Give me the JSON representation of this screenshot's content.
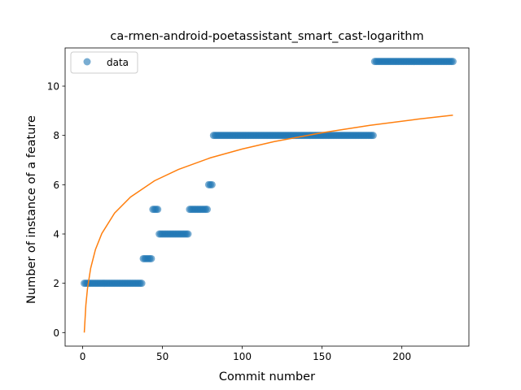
{
  "chart_data": {
    "type": "scatter",
    "title": "ca-rmen-android-poetassistant_smart_cast-logarithm",
    "xlabel": "Commit number",
    "ylabel": "Number of instance of a feature",
    "xlim": [
      -11,
      242
    ],
    "ylim": [
      -0.55,
      11.55
    ],
    "xticks": [
      0,
      50,
      100,
      150,
      200
    ],
    "yticks": [
      0,
      2,
      4,
      6,
      8,
      10
    ],
    "legend": {
      "placement": "top-left",
      "entries": [
        "data"
      ]
    },
    "series": [
      {
        "name": "data",
        "kind": "scatter",
        "color": "#1f77b4",
        "segments": [
          {
            "x_from": 1,
            "x_to": 37,
            "y": 2
          },
          {
            "x_from": 38,
            "x_to": 43,
            "y": 3
          },
          {
            "x_from": 44,
            "x_to": 47,
            "y": 5
          },
          {
            "x_from": 48,
            "x_to": 66,
            "y": 4
          },
          {
            "x_from": 67,
            "x_to": 78,
            "y": 5
          },
          {
            "x_from": 79,
            "x_to": 81,
            "y": 6
          },
          {
            "x_from": 82,
            "x_to": 182,
            "y": 8
          },
          {
            "x_from": 183,
            "x_to": 232,
            "y": 11
          }
        ]
      },
      {
        "kind": "line",
        "color": "#ff7f0e",
        "model": "logarithmic",
        "points": [
          [
            1,
            0.0
          ],
          [
            2,
            1.12
          ],
          [
            3,
            1.78
          ],
          [
            5,
            2.61
          ],
          [
            8,
            3.37
          ],
          [
            12,
            4.02
          ],
          [
            20,
            4.85
          ],
          [
            30,
            5.5
          ],
          [
            45,
            6.16
          ],
          [
            60,
            6.62
          ],
          [
            80,
            7.09
          ],
          [
            100,
            7.45
          ],
          [
            120,
            7.75
          ],
          [
            150,
            8.11
          ],
          [
            180,
            8.41
          ],
          [
            210,
            8.66
          ],
          [
            232,
            8.82
          ]
        ]
      }
    ]
  }
}
